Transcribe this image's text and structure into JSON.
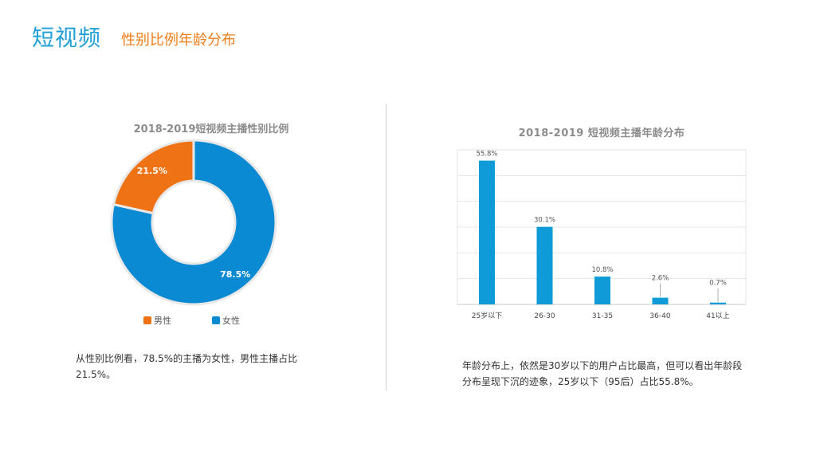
{
  "header": {
    "title": "短视频",
    "subtitle": "性别比例年龄分布"
  },
  "pie": {
    "title": "2018-2019短视频主播性别比例",
    "description": "从性别比例看，78.5%的主播为女性，男性主播占比21.5%。"
  },
  "bar": {
    "title": "2018-2019 短视频主播年龄分布",
    "description": "年龄分布上，依然是30岁以下的用户占比最高，但可以看出年龄段分布呈现下沉的迹象，25岁以下（95后）占比55.8%。"
  },
  "colors": {
    "male": "#ef7215",
    "female": "#0b8ad4",
    "bar": "#0e9bd8",
    "title_blue": "#1f9fd6",
    "subtitle_orange": "#f07d18"
  },
  "chart_data": [
    {
      "type": "pie",
      "variant": "donut",
      "title": "2018-2019短视频主播性别比例",
      "categories": [
        "男性",
        "女性"
      ],
      "values": [
        21.5,
        78.5
      ],
      "labels": [
        "21.5%",
        "78.5%"
      ],
      "legend": "bottom"
    },
    {
      "type": "bar",
      "title": "2018-2019 短视频主播年龄分布",
      "categories": [
        "25岁以下",
        "26-30",
        "31-35",
        "36-40",
        "41以上"
      ],
      "values": [
        55.8,
        30.1,
        10.8,
        2.6,
        0.7
      ],
      "labels": [
        "55.8%",
        "30.1%",
        "10.8%",
        "2.6%",
        "0.7%"
      ],
      "xlabel": "",
      "ylabel": "",
      "ylim": [
        0,
        60
      ],
      "grid": true
    }
  ]
}
